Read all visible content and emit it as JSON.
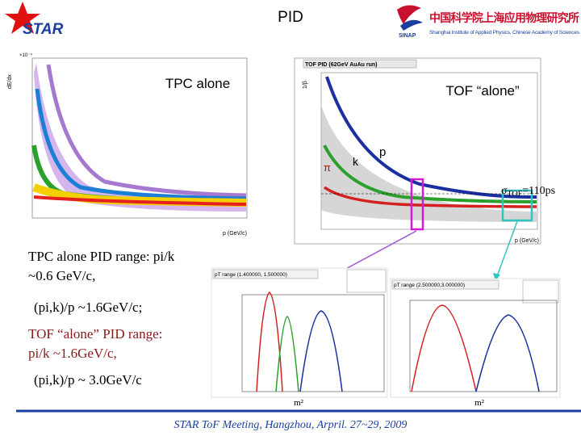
{
  "header": {
    "star_logo": "STAR",
    "title": "PID",
    "institute": {
      "abbr": "SINAP",
      "name_cn": "中国科学院上海应用物理研究所",
      "name_en": "Shanghai Institute of Applied Physics, Chinese Academy of Sciences"
    }
  },
  "tpc_plot": {
    "label": "TPC alone",
    "y_axis": "dE/dx",
    "x_axis": "p (GeV/c)",
    "exponent": "×10⁻⁴"
  },
  "tof_plot": {
    "frame_title": "TOF PID (62GeV AuAu run)",
    "label": "TOF “alone”",
    "y_axis": "1/β",
    "x_axis": "p (GeV/c)",
    "pion": "π",
    "kaon": "k",
    "proton": "p",
    "resolution": {
      "symbol": "σ",
      "subscript": "TOF",
      "rest": "=110ps"
    }
  },
  "notes": {
    "tpc_line1": "TPC alone PID range:  pi/k",
    "tpc_line2": "~0.6 GeV/c,",
    "tpc_line3": "(pi,k)/p ~1.6GeV/c;",
    "tof_line1": "TOF “alone” PID range:",
    "tof_line2": "pi/k ~1.6GeV/c,",
    "tof_line3": "(pi,k)/p ~ 3.0GeV/c"
  },
  "histograms": [
    {
      "range": "pT range (1.400000, 1.500000)",
      "x_axis": "m²"
    },
    {
      "range": "pT range (2.500000,3.000000)",
      "x_axis": "m²"
    }
  ],
  "footer": "STAR ToF Meeting, Hangzhou, Arpril. 27~29, 2009"
}
